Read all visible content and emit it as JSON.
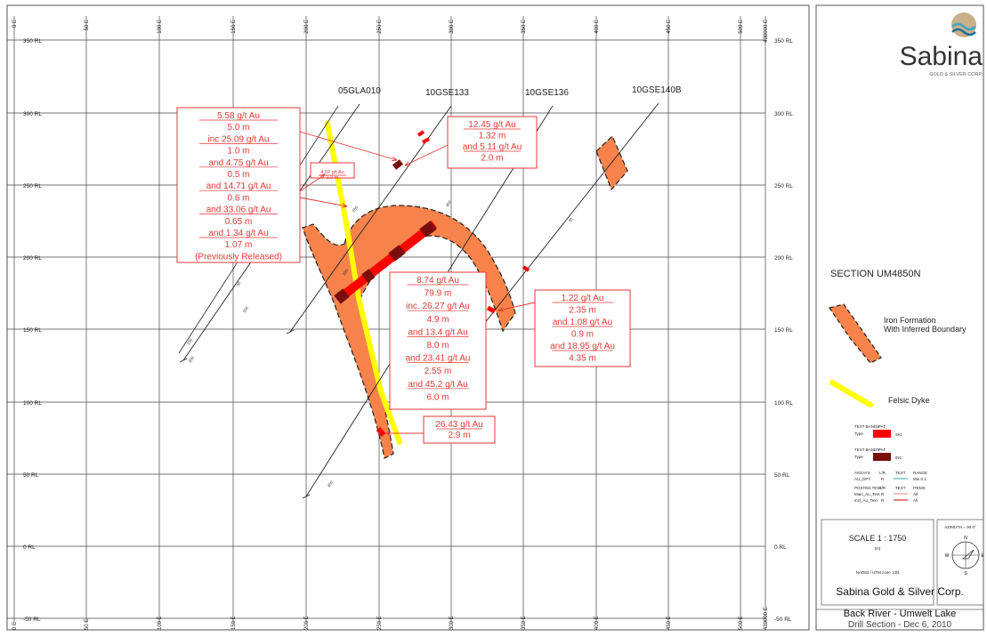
{
  "section": {
    "rl_labels": [
      "350 RL",
      "300 RL",
      "250 RL",
      "200 RL",
      "150 RL",
      "100 RL",
      "50 RL",
      "0 RL",
      "-50 RL"
    ],
    "e_labels": [
      "0 E",
      "50 E",
      "100 E",
      "150 E",
      "200 E",
      "250 E",
      "300 E",
      "350 E",
      "400 E",
      "450 E",
      "500 E"
    ],
    "corner_label": "430000 E",
    "holes": [
      {
        "name": "05GLA010"
      },
      {
        "name": "10GSE133"
      },
      {
        "name": "10GSE136"
      },
      {
        "name": "10GSE140B"
      }
    ],
    "depth_ticks": [
      "50",
      "100",
      "150",
      "200",
      "250",
      "300",
      "350",
      "400"
    ]
  },
  "callouts": {
    "left": [
      "5.58 g/t Au",
      "5.0 m",
      "inc 25.09 g/t Au",
      "1.0 m",
      "and 4.75 g/t Au",
      "0.5 m",
      "and 14.71 g/t Au",
      "0.6 m",
      "and 33.06 g/t Au",
      "0.65 m",
      "and 1.34 g/t Au",
      "1.07 m",
      "(Previously Released)"
    ],
    "small": [
      "4.02 g/t Au",
      "1.0 m"
    ],
    "top_right": [
      "12.45 g/t Au",
      "1.32 m",
      "and 5.11 g/t Au",
      "2.0 m"
    ],
    "center": [
      "8.74 g/t Au",
      "79.9 m",
      "inc. 26.27 g/t Au",
      "4.9 m",
      "and 13.4 g/t Au",
      "8.0 m",
      "and 23.41 g/t Au",
      "2.55 m",
      "and 45.2 g/t Au",
      "6.0 m"
    ],
    "right": [
      "1.22 g/t Au",
      "2.35 m",
      "and 1.08 g/t Au",
      "0.9 m",
      "and 18.95 g/t Au",
      "4.35 m"
    ],
    "bottom": [
      "26.43 g/t Au",
      "2.9 m"
    ]
  },
  "sidebar": {
    "logo_text": "Sabina",
    "logo_sub": "GOLD & SILVER CORP.",
    "section_title": "SECTION UM4850N",
    "legend_iron": [
      "Iron Formation",
      "With Inferred Boundary"
    ],
    "legend_dyke": "Felsic Dyke",
    "text_bands_1": {
      "title": "TEXT BANDS",
      "col": "PAT",
      "type": "Type",
      "val": "SIG"
    },
    "text_bands_2": {
      "title": "TEXT BANDS",
      "col": "PAT",
      "type": "Type",
      "val": "INC"
    },
    "assays": {
      "title": "ASSAYS",
      "field": "AU_GPT",
      "lr": "L/R",
      "r": "R",
      "text": "TEXT",
      "range": "RANGE",
      "range_val": "Min 0.1"
    },
    "posted": {
      "title": "POSTED TEXT",
      "lr": "L/R",
      "text": "TEXT",
      "items": "ITEMS",
      "rows": [
        [
          "Main_Au_Text",
          "R",
          "All"
        ],
        [
          "Incl_Au_Text",
          "R",
          "All"
        ]
      ]
    },
    "scale_title": "SCALE 1 : 1750",
    "scale_unit": "(m)",
    "scale_ticks": [
      "-10",
      "0",
      "10",
      "20",
      "30",
      "40",
      "50"
    ],
    "datum": "NAD83 / UTM zone 13N",
    "azimuth": "AZIMUTH = 90.0°",
    "compass": {
      "n": "N",
      "s": "S",
      "w": "W",
      "e": "E"
    },
    "company": "Sabina Gold & Silver Corp.",
    "project": "Back River - Umwelt Lake",
    "subtitle": "Drill Section - Dec 6, 2010"
  },
  "colors": {
    "iron": "#f7834a",
    "dyke": "#ffff00",
    "sig": "#ff0000",
    "inc": "#7a0d0d",
    "callout": "#e53935"
  }
}
